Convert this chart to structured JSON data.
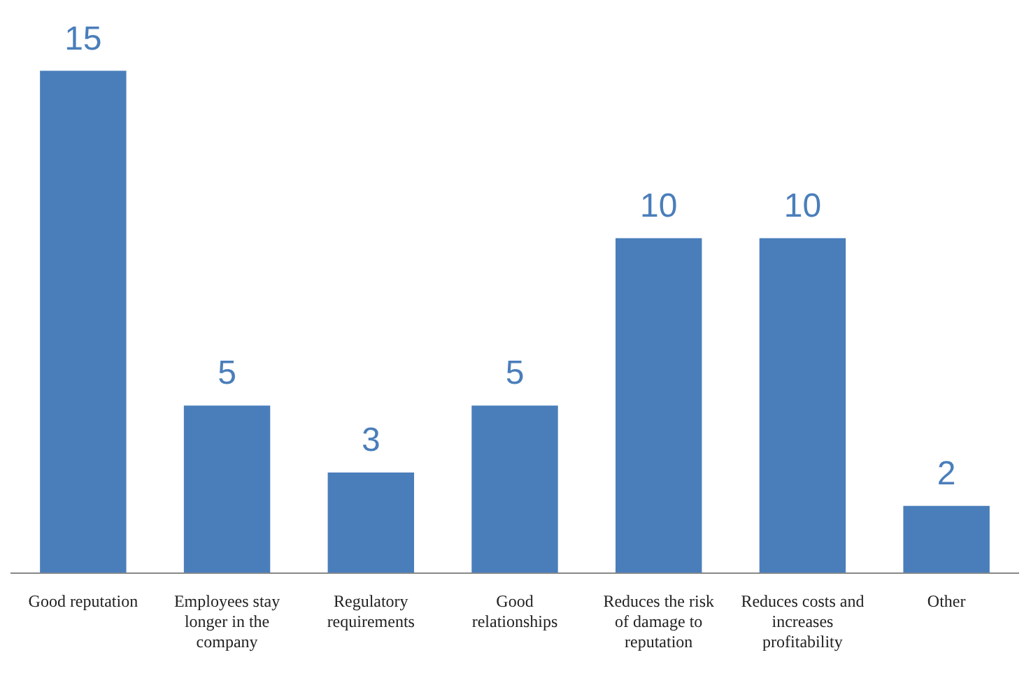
{
  "chart_data": {
    "type": "bar",
    "categories": [
      "Good reputation",
      "Employees stay  longer in the company",
      "Regulatory requirements",
      "Good relationships",
      "Reduces the risk of damage to reputation",
      "Reduces costs and increases profitability",
      "Other"
    ],
    "values": [
      15,
      5,
      3,
      5,
      10,
      10,
      2
    ],
    "color": "#4a7ebb",
    "data_labels": true,
    "grid": false,
    "legend": false
  }
}
